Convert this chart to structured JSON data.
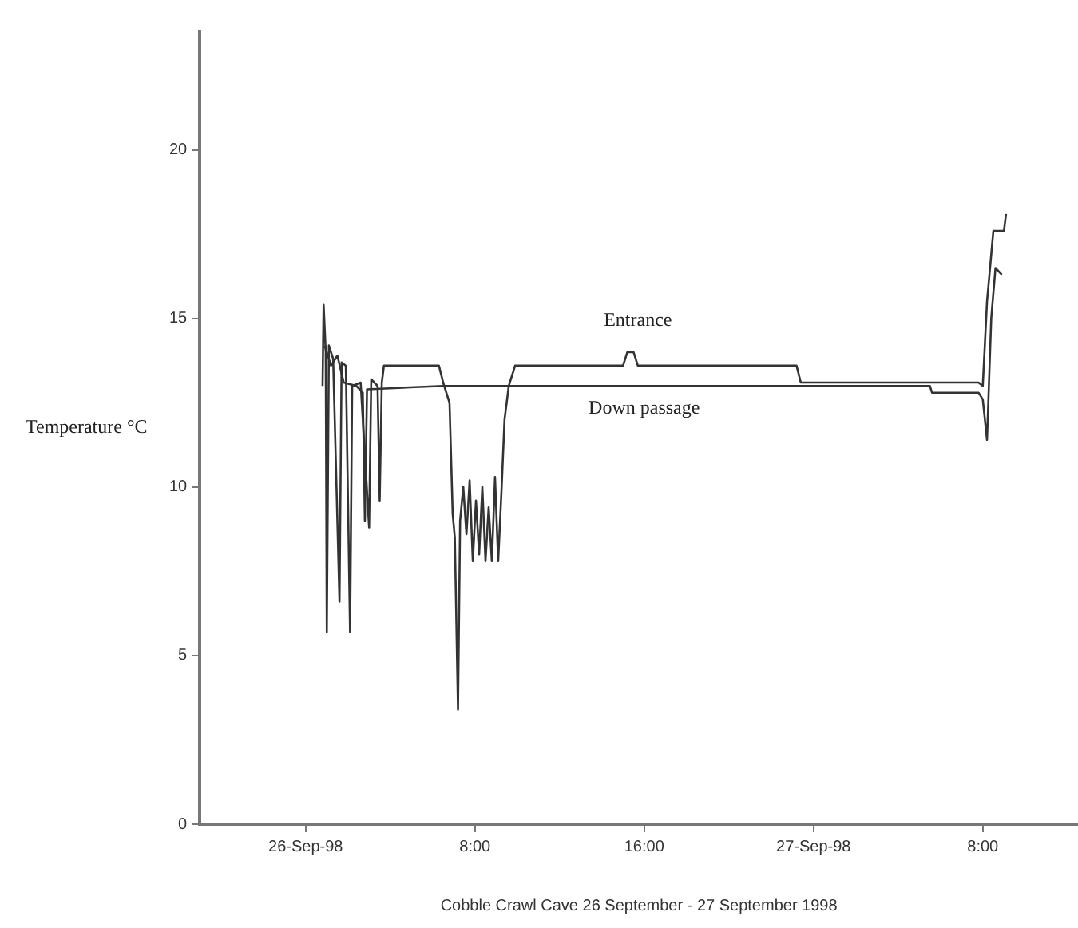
{
  "chart_data": {
    "type": "line",
    "xlabel": "Cobble Crawl Cave 26 September - 27 September 1998",
    "ylabel": "Temperature °C",
    "xlim": [
      "1998-09-25T19:00",
      "1998-09-27T12:30"
    ],
    "xticks": [
      {
        "value": "1998-09-26",
        "label": "26-Sep-98"
      },
      {
        "value": "1998-09-26T08:00",
        "label": "8:00"
      },
      {
        "value": "1998-09-26T16:00",
        "label": "16:00"
      },
      {
        "value": "1998-09-27",
        "label": "27-Sep-98"
      },
      {
        "value": "1998-09-27T08:00",
        "label": "8:00"
      }
    ],
    "ylim": [
      0,
      23.5
    ],
    "yticks": [
      0,
      5,
      10,
      15,
      20
    ],
    "grid": false,
    "legend": false,
    "marker": "none",
    "line_style": "solid",
    "series": [
      {
        "name": "Entrance",
        "color": "#333333",
        "x": [
          "1998-09-26T00:48",
          "1998-09-26T00:51",
          "1998-09-26T00:57",
          "1998-09-26T01:00",
          "1998-09-26T01:06",
          "1998-09-26T01:18",
          "1998-09-26T01:36",
          "1998-09-26T01:42",
          "1998-09-26T01:54",
          "1998-09-26T02:06",
          "1998-09-26T02:12",
          "1998-09-26T02:36",
          "1998-09-26T03:00",
          "1998-09-26T03:06",
          "1998-09-26T03:24",
          "1998-09-26T03:30",
          "1998-09-26T03:36",
          "1998-09-26T03:42",
          "1998-09-26T06:18",
          "1998-09-26T06:30",
          "1998-09-26T06:48",
          "1998-09-26T06:57",
          "1998-09-26T07:03",
          "1998-09-26T07:12",
          "1998-09-26T07:18",
          "1998-09-26T07:27",
          "1998-09-26T07:36",
          "1998-09-26T07:45",
          "1998-09-26T07:54",
          "1998-09-26T08:03",
          "1998-09-26T08:12",
          "1998-09-26T08:21",
          "1998-09-26T08:30",
          "1998-09-26T08:39",
          "1998-09-26T08:48",
          "1998-09-26T08:57",
          "1998-09-26T09:06",
          "1998-09-26T09:15",
          "1998-09-26T09:24",
          "1998-09-26T09:36",
          "1998-09-26T09:54",
          "1998-09-26T15:00",
          "1998-09-26T15:12",
          "1998-09-26T15:30",
          "1998-09-26T15:42",
          "1998-09-26T23:12",
          "1998-09-26T23:24",
          "1998-09-27T07:48",
          "1998-09-27T08:00",
          "1998-09-27T08:12",
          "1998-09-27T08:30",
          "1998-09-27T09:00",
          "1998-09-27T09:06"
        ],
        "values": [
          13.0,
          15.4,
          14.0,
          5.7,
          14.2,
          13.8,
          6.6,
          13.7,
          13.6,
          5.7,
          13.0,
          13.1,
          8.8,
          13.2,
          13.0,
          9.6,
          13.1,
          13.6,
          13.6,
          13.1,
          12.5,
          9.2,
          8.5,
          3.4,
          9.0,
          10.0,
          8.6,
          10.2,
          7.8,
          9.6,
          8.0,
          10.0,
          7.8,
          9.4,
          7.8,
          10.3,
          7.8,
          9.8,
          12.0,
          13.0,
          13.6,
          13.6,
          14.0,
          14.0,
          13.6,
          13.6,
          13.1,
          13.1,
          13.0,
          15.5,
          17.6,
          17.6,
          18.1
        ]
      },
      {
        "name": "Down passage",
        "color": "#333333",
        "x": [
          "1998-09-26T00:54",
          "1998-09-26T01:12",
          "1998-09-26T01:30",
          "1998-09-26T01:48",
          "1998-09-26T02:24",
          "1998-09-26T02:42",
          "1998-09-26T02:48",
          "1998-09-26T02:54",
          "1998-09-26T06:30",
          "1998-09-26T16:00",
          "1998-09-27T05:30",
          "1998-09-27T05:36",
          "1998-09-27T07:48",
          "1998-09-27T08:00",
          "1998-09-27T08:12",
          "1998-09-27T08:24",
          "1998-09-27T08:36",
          "1998-09-27T08:54"
        ],
        "values": [
          14.2,
          13.6,
          13.9,
          13.1,
          13.0,
          12.8,
          9.0,
          12.9,
          13.0,
          13.0,
          13.0,
          12.8,
          12.8,
          12.6,
          11.4,
          15.0,
          16.5,
          16.3
        ]
      }
    ]
  }
}
